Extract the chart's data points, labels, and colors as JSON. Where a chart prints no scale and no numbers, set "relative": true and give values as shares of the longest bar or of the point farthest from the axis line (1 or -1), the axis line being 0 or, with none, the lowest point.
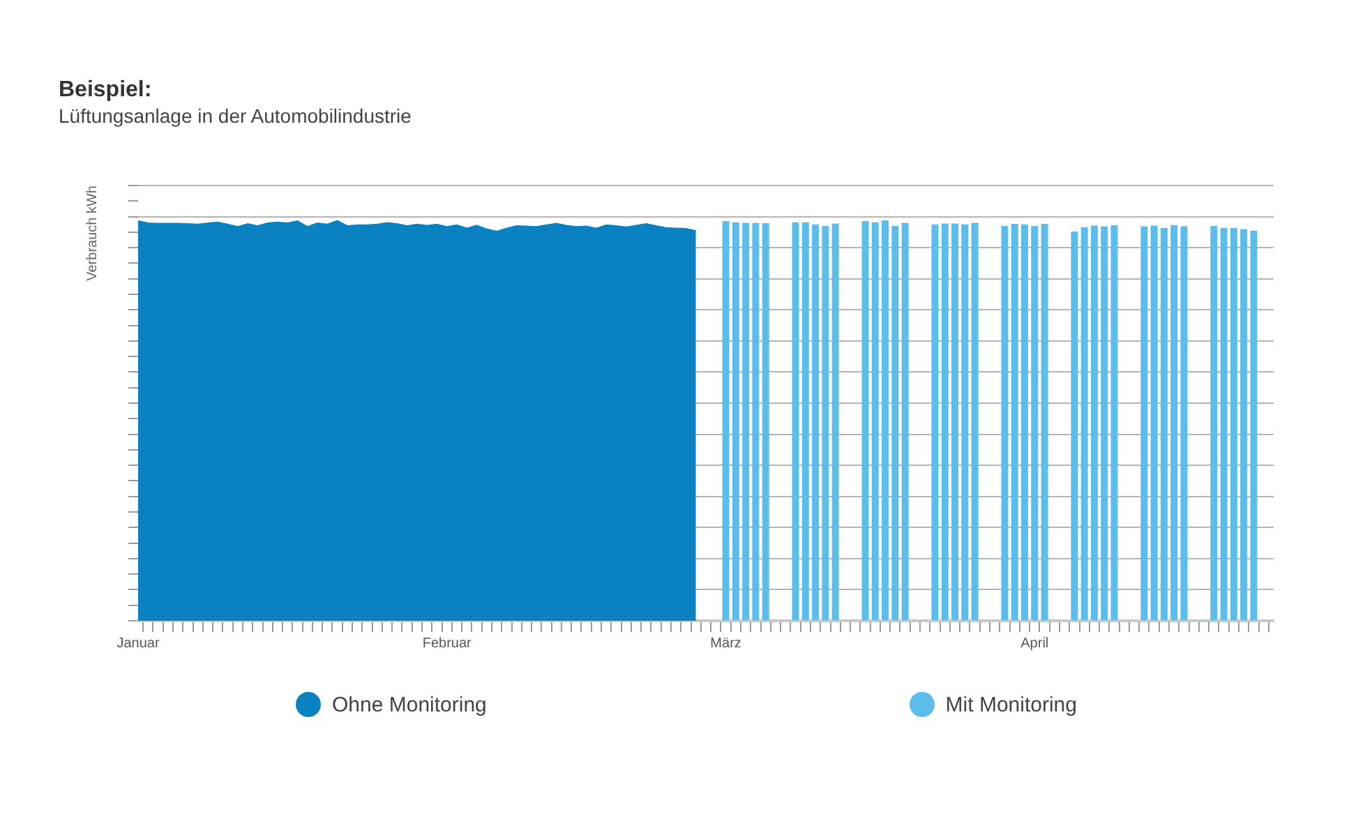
{
  "chart_data": {
    "type": "bar",
    "title": "Beispiel:",
    "subtitle": "Lüftungsanlage in der Automobilindustrie",
    "ylabel": "Verbrauch kWh",
    "relative": true,
    "grid": "y",
    "legend": "bottom",
    "categories": [
      "Januar",
      null,
      null,
      null,
      null,
      null,
      null,
      null,
      null,
      null,
      null,
      null,
      null,
      null,
      null,
      null,
      null,
      null,
      null,
      null,
      null,
      null,
      null,
      null,
      null,
      null,
      null,
      null,
      null,
      null,
      null,
      "Februar",
      null,
      null,
      null,
      null,
      null,
      null,
      null,
      null,
      null,
      null,
      null,
      null,
      null,
      null,
      null,
      null,
      null,
      null,
      null,
      null,
      null,
      null,
      null,
      null,
      null,
      null,
      null,
      "März",
      null,
      null,
      null,
      null,
      null,
      null,
      null,
      null,
      null,
      null,
      null,
      null,
      null,
      null,
      null,
      null,
      null,
      null,
      null,
      null,
      null,
      null,
      null,
      null,
      null,
      null,
      null,
      null,
      null,
      null,
      "April",
      null,
      null,
      null,
      null,
      null,
      null,
      null,
      null,
      null,
      null,
      null,
      null,
      null,
      null,
      null,
      null,
      null,
      null,
      null,
      null,
      null,
      null,
      null,
      null
    ],
    "series": [
      {
        "name": "Ohne Monitoring",
        "type": "area",
        "color": "#0a82c2",
        "values": [
          0.998,
          0.993,
          0.992,
          0.992,
          0.992,
          0.991,
          0.99,
          0.993,
          0.995,
          0.99,
          0.984,
          0.991,
          0.986,
          0.993,
          0.995,
          0.993,
          0.998,
          0.984,
          0.993,
          0.99,
          0.999,
          0.986,
          0.988,
          0.988,
          0.99,
          0.994,
          0.991,
          0.986,
          0.99,
          0.987,
          0.99,
          0.984,
          0.988,
          0.98,
          0.987,
          0.978,
          0.972,
          0.98,
          0.986,
          0.985,
          0.984,
          0.988,
          0.992,
          0.987,
          0.984,
          0.985,
          0.98,
          0.988,
          0.986,
          0.983,
          0.987,
          0.991,
          0.986,
          0.981,
          0.98,
          0.979,
          0.974,
          null,
          null,
          null,
          null,
          null,
          null,
          null,
          null,
          null,
          null,
          null,
          null,
          null,
          null,
          null,
          null,
          null,
          null,
          null,
          null,
          null,
          null,
          null,
          null,
          null,
          null,
          null,
          null,
          null,
          null,
          null,
          null,
          null,
          null,
          null,
          null,
          null,
          null,
          null,
          null,
          null,
          null,
          null,
          null,
          null,
          null,
          null,
          null,
          null,
          null,
          null,
          null,
          null,
          null,
          null,
          null,
          null,
          null
        ]
      },
      {
        "name": "Mit Monitoring",
        "color": "#5bbdec",
        "values": [
          null,
          null,
          null,
          null,
          null,
          null,
          null,
          null,
          null,
          null,
          null,
          null,
          null,
          null,
          null,
          null,
          null,
          null,
          null,
          null,
          null,
          null,
          null,
          null,
          null,
          null,
          null,
          null,
          null,
          null,
          null,
          null,
          null,
          null,
          null,
          null,
          null,
          null,
          null,
          null,
          null,
          null,
          null,
          null,
          null,
          null,
          null,
          null,
          null,
          null,
          null,
          null,
          null,
          null,
          null,
          null,
          null,
          null,
          null,
          0.998,
          0.995,
          0.994,
          0.994,
          0.993,
          null,
          null,
          0.995,
          0.995,
          0.99,
          0.986,
          0.992,
          null,
          null,
          0.998,
          0.995,
          1.0,
          0.986,
          0.994,
          null,
          null,
          0.99,
          0.992,
          0.992,
          0.99,
          0.994,
          null,
          null,
          0.986,
          0.991,
          0.99,
          0.986,
          0.991,
          null,
          null,
          0.972,
          0.983,
          0.987,
          0.985,
          0.988,
          null,
          null,
          0.985,
          0.987,
          0.981,
          0.988,
          0.985,
          null,
          null,
          0.986,
          0.981,
          0.981,
          0.978,
          0.974,
          null,
          null
        ]
      }
    ]
  }
}
